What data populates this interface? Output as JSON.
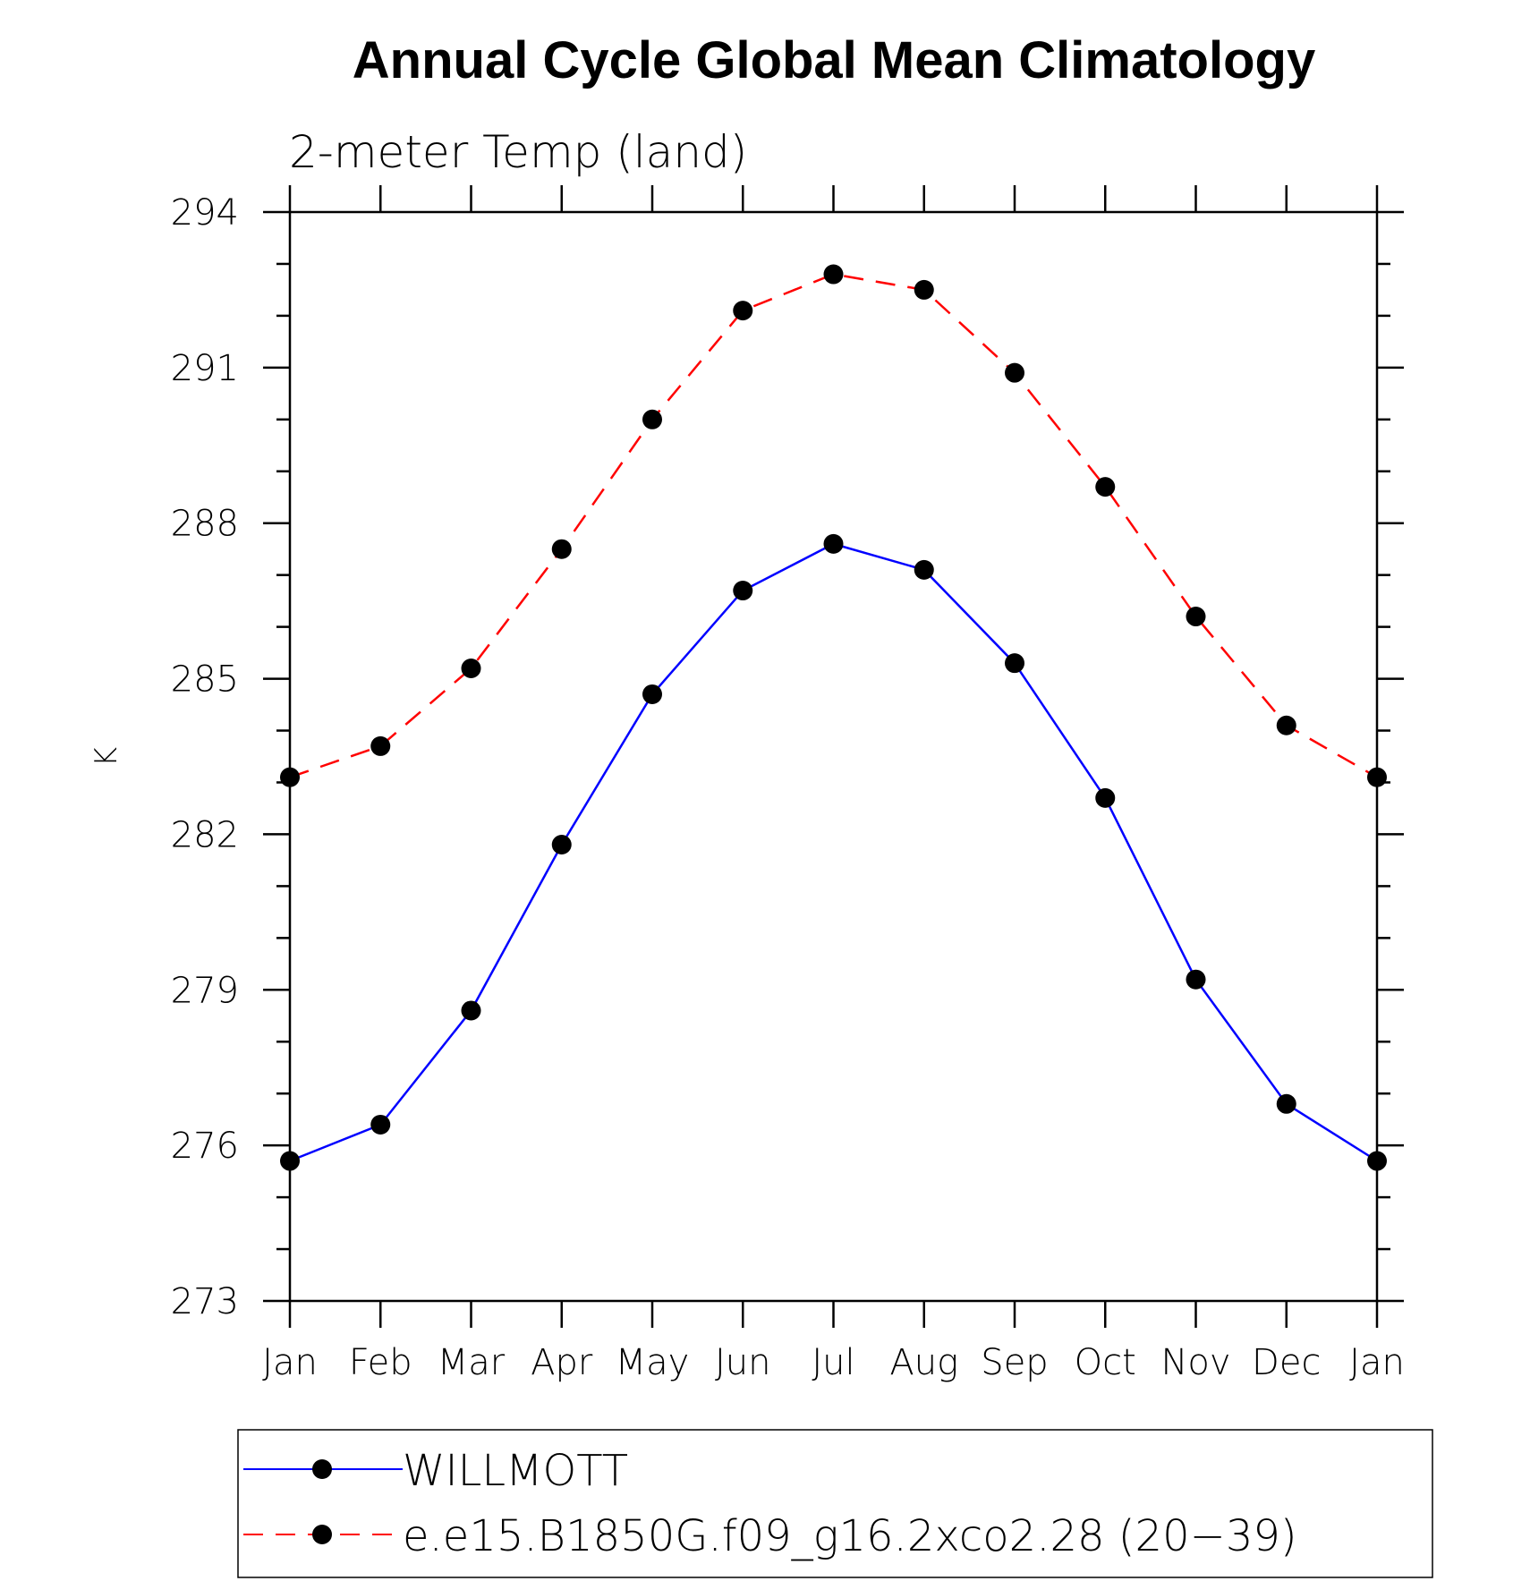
{
  "chart_data": {
    "type": "line",
    "title": "Annual Cycle Global Mean Climatology",
    "subtitle": "2-meter Temp (land)",
    "xlabel": "",
    "ylabel": "K",
    "categories": [
      "Jan",
      "Feb",
      "Mar",
      "Apr",
      "May",
      "Jun",
      "Jul",
      "Aug",
      "Sep",
      "Oct",
      "Nov",
      "Dec",
      "Jan"
    ],
    "ylim": [
      273,
      294
    ],
    "yticks": [
      273,
      276,
      279,
      282,
      285,
      288,
      291,
      294
    ],
    "grid": false,
    "legend_position": "bottom",
    "series": [
      {
        "name": "WILLMOTT",
        "color": "#0000ff",
        "line_style": "solid",
        "marker": "filled-circle",
        "values": [
          275.7,
          276.4,
          278.6,
          281.8,
          284.7,
          286.7,
          287.6,
          287.1,
          285.3,
          282.7,
          279.2,
          276.8,
          275.7
        ]
      },
      {
        "name": "e.e15.B1850G.f09_g16.2xco2.28 (20−39)",
        "color": "#ff0000",
        "line_style": "dashed",
        "marker": "filled-circle",
        "values": [
          283.1,
          283.7,
          285.2,
          287.5,
          290.0,
          292.1,
          292.8,
          292.5,
          290.9,
          288.7,
          286.2,
          284.1,
          283.1
        ]
      }
    ]
  }
}
